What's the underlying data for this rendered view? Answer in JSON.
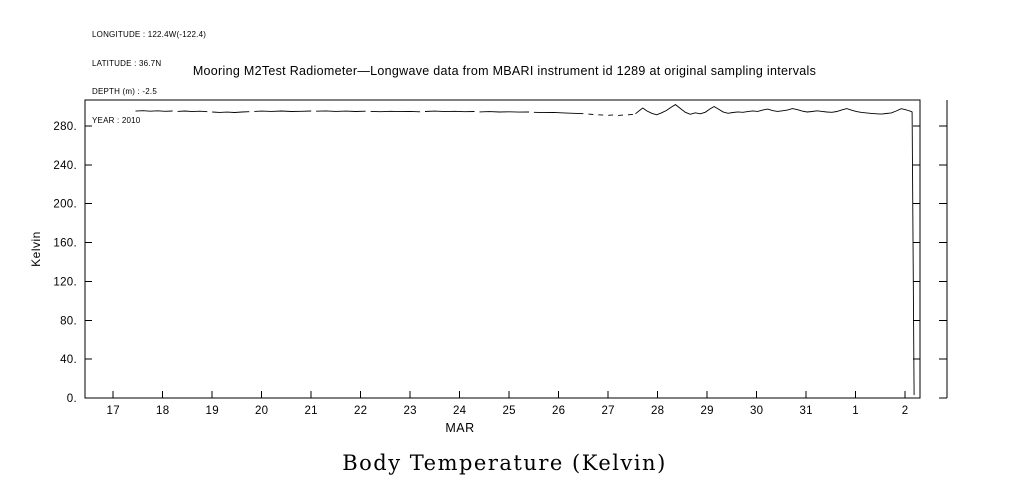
{
  "meta": {
    "longitude": "LONGITUDE : 122.4W(-122.4)",
    "latitude": "LATITUDE : 36.7N",
    "depth": "DEPTH (m) : -2.5",
    "year": "YEAR : 2010"
  },
  "caption": "Body Temperature (Kelvin)",
  "chart_data": {
    "type": "line",
    "title": "Mooring M2Test Radiometer—Longwave data from MBARI instrument id 1289 at original sampling intervals",
    "xlabel": "MAR",
    "ylabel": "Kelvin",
    "line_color": "#000000",
    "x_range": [
      16.43,
      33.3
    ],
    "y_range": [
      0,
      306.7
    ],
    "grid": false,
    "legend": "none",
    "x_ticks": [
      {
        "value": 17,
        "label": "17"
      },
      {
        "value": 18,
        "label": "18"
      },
      {
        "value": 19,
        "label": "19"
      },
      {
        "value": 20,
        "label": "20"
      },
      {
        "value": 21,
        "label": "21"
      },
      {
        "value": 22,
        "label": "22"
      },
      {
        "value": 23,
        "label": "23"
      },
      {
        "value": 24,
        "label": "24"
      },
      {
        "value": 25,
        "label": "25"
      },
      {
        "value": 26,
        "label": "26"
      },
      {
        "value": 27,
        "label": "27"
      },
      {
        "value": 28,
        "label": "28"
      },
      {
        "value": 29,
        "label": "29"
      },
      {
        "value": 30,
        "label": "30"
      },
      {
        "value": 31,
        "label": "31"
      },
      {
        "value": 32,
        "label": "1"
      },
      {
        "value": 33,
        "label": "2"
      }
    ],
    "y_ticks": [
      {
        "value": 0,
        "label": "0."
      },
      {
        "value": 40,
        "label": "40."
      },
      {
        "value": 80,
        "label": "80."
      },
      {
        "value": 120,
        "label": "120."
      },
      {
        "value": 160,
        "label": "160."
      },
      {
        "value": 200,
        "label": "200."
      },
      {
        "value": 240,
        "label": "240."
      },
      {
        "value": 280,
        "label": "280."
      }
    ],
    "series_segments": [
      [
        [
          17.45,
          295.3
        ],
        [
          17.6,
          295.7
        ],
        [
          17.75,
          295.2
        ],
        [
          17.9,
          295.6
        ],
        [
          18.05,
          295.1
        ],
        [
          18.2,
          295.4
        ]
      ],
      [
        [
          18.3,
          295.0
        ],
        [
          18.45,
          295.4
        ],
        [
          18.6,
          294.8
        ],
        [
          18.75,
          295.2
        ],
        [
          18.9,
          294.7
        ]
      ],
      [
        [
          19.0,
          294.4
        ],
        [
          19.15,
          293.9
        ],
        [
          19.3,
          294.2
        ],
        [
          19.45,
          293.8
        ],
        [
          19.6,
          294.3
        ],
        [
          19.75,
          294.7
        ]
      ],
      [
        [
          19.85,
          295.0
        ],
        [
          20.0,
          295.3
        ],
        [
          20.2,
          295.0
        ],
        [
          20.4,
          295.4
        ],
        [
          20.6,
          294.9
        ],
        [
          20.8,
          295.1
        ],
        [
          21.0,
          295.4
        ]
      ],
      [
        [
          21.1,
          295.2
        ],
        [
          21.3,
          295.5
        ],
        [
          21.5,
          295.0
        ],
        [
          21.7,
          295.3
        ],
        [
          21.9,
          294.9
        ],
        [
          22.1,
          295.2
        ]
      ],
      [
        [
          22.2,
          295.0
        ],
        [
          22.4,
          294.7
        ],
        [
          22.6,
          295.1
        ],
        [
          22.8,
          294.8
        ],
        [
          23.0,
          295.0
        ],
        [
          23.2,
          294.6
        ]
      ],
      [
        [
          23.3,
          294.9
        ],
        [
          23.5,
          295.3
        ],
        [
          23.7,
          294.8
        ],
        [
          23.9,
          295.1
        ],
        [
          24.1,
          294.7
        ],
        [
          24.3,
          294.9
        ]
      ],
      [
        [
          24.4,
          294.5
        ],
        [
          24.6,
          294.8
        ],
        [
          24.8,
          294.4
        ],
        [
          25.0,
          294.6
        ],
        [
          25.2,
          294.2
        ],
        [
          25.4,
          294.4
        ]
      ],
      [
        [
          25.5,
          294.0
        ],
        [
          25.7,
          293.7
        ],
        [
          25.9,
          293.9
        ],
        [
          26.1,
          293.4
        ],
        [
          26.3,
          293.0
        ],
        [
          26.5,
          292.6
        ]
      ],
      [
        [
          26.6,
          292.2
        ],
        [
          26.7,
          291.8
        ]
      ],
      [
        [
          26.8,
          291.5
        ],
        [
          26.9,
          291.2
        ]
      ],
      [
        [
          27.0,
          291.0
        ],
        [
          27.1,
          291.4
        ]
      ],
      [
        [
          27.2,
          290.8
        ],
        [
          27.3,
          291.2
        ]
      ],
      [
        [
          27.4,
          291.5
        ],
        [
          27.5,
          291.9
        ]
      ],
      [
        [
          27.55,
          292.5
        ],
        [
          27.65,
          296.5
        ],
        [
          27.7,
          298.5
        ],
        [
          27.78,
          295.5
        ],
        [
          27.88,
          293.0
        ],
        [
          27.98,
          291.5
        ],
        [
          28.08,
          293.5
        ],
        [
          28.18,
          296.0
        ],
        [
          28.28,
          299.5
        ],
        [
          28.36,
          302.0
        ],
        [
          28.46,
          298.0
        ],
        [
          28.56,
          294.0
        ],
        [
          28.66,
          292.0
        ],
        [
          28.76,
          293.5
        ],
        [
          28.86,
          292.5
        ],
        [
          28.96,
          294.0
        ],
        [
          29.06,
          297.5
        ],
        [
          29.14,
          300.0
        ],
        [
          29.22,
          297.5
        ],
        [
          29.32,
          294.5
        ],
        [
          29.42,
          293.0
        ],
        [
          29.52,
          293.8
        ],
        [
          29.62,
          294.5
        ],
        [
          29.72,
          294.0
        ],
        [
          29.82,
          294.8
        ],
        [
          29.92,
          295.5
        ],
        [
          30.02,
          295.0
        ],
        [
          30.12,
          296.3
        ],
        [
          30.22,
          297.3
        ],
        [
          30.32,
          295.8
        ],
        [
          30.42,
          295.0
        ],
        [
          30.52,
          295.6
        ],
        [
          30.62,
          296.3
        ],
        [
          30.72,
          297.8
        ],
        [
          30.82,
          296.8
        ],
        [
          30.92,
          295.3
        ],
        [
          31.02,
          294.4
        ],
        [
          31.12,
          294.9
        ],
        [
          31.22,
          295.6
        ],
        [
          31.32,
          295.0
        ],
        [
          31.42,
          294.4
        ],
        [
          31.52,
          294.0
        ],
        [
          31.62,
          294.9
        ],
        [
          31.72,
          296.5
        ],
        [
          31.82,
          297.9
        ],
        [
          31.92,
          296.2
        ],
        [
          32.02,
          294.8
        ],
        [
          32.12,
          293.9
        ],
        [
          32.22,
          293.4
        ],
        [
          32.32,
          292.9
        ],
        [
          32.42,
          292.5
        ],
        [
          32.52,
          292.2
        ],
        [
          32.62,
          292.8
        ],
        [
          32.72,
          293.4
        ],
        [
          32.82,
          295.4
        ],
        [
          32.92,
          297.7
        ],
        [
          33.0,
          296.8
        ],
        [
          33.06,
          295.9
        ],
        [
          33.1,
          295.3
        ],
        [
          33.14,
          294.5
        ],
        [
          33.16,
          150.0
        ],
        [
          33.18,
          3.0
        ]
      ]
    ]
  }
}
